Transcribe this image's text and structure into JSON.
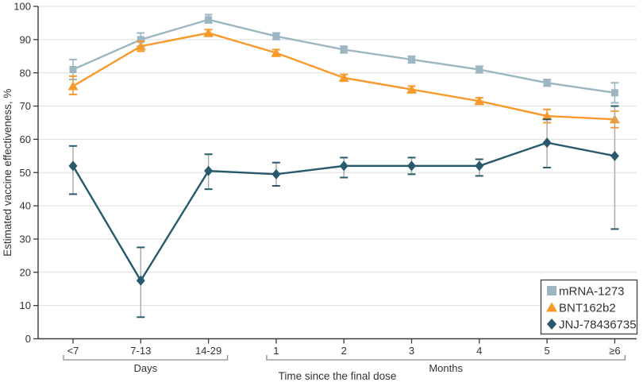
{
  "figure": {
    "ylabel": "Estimated vaccine effectiveness, %",
    "xlabel": "Time since the final dose"
  },
  "chart_data": {
    "type": "line",
    "title": "",
    "xlabel": "Time since the final dose",
    "ylabel": "Estimated vaccine effectiveness, %",
    "ylim": [
      0,
      100
    ],
    "ytick_step": 10,
    "yticks": [
      0,
      10,
      20,
      30,
      40,
      50,
      60,
      70,
      80,
      90,
      100
    ],
    "grid": true,
    "legend_position": "bottom-right",
    "categories": [
      "<7",
      "7-13",
      "14-29",
      "1",
      "2",
      "3",
      "4",
      "5",
      "≥6"
    ],
    "category_groups": [
      {
        "label": "Days",
        "first": 0,
        "last": 2
      },
      {
        "label": "Months",
        "first": 3,
        "last": 8
      }
    ],
    "colors": {
      "grid": "#DEDEDE",
      "axis": "#3A3A3A",
      "bracket": "#8C8C8C",
      "legend_border": "#4A4A4A"
    },
    "series": [
      {
        "name": "mRNA-1273",
        "marker": "square",
        "color": "#9CB6C2",
        "values": [
          81,
          90,
          96,
          91,
          87,
          84,
          81,
          77,
          74
        ],
        "ci_low": [
          78,
          88,
          95,
          90,
          86,
          83,
          80,
          76,
          71
        ],
        "ci_high": [
          84,
          92,
          97.5,
          92,
          88,
          85,
          82,
          78,
          77
        ]
      },
      {
        "name": "BNT162b2",
        "marker": "triangle",
        "color": "#F8992C",
        "values": [
          76,
          88,
          92,
          86,
          78.5,
          75,
          71.5,
          67,
          66
        ],
        "ci_low": [
          73.5,
          86.5,
          91,
          85,
          77.5,
          74,
          70.5,
          65,
          63.5
        ],
        "ci_high": [
          79,
          89.5,
          93,
          87,
          79.5,
          76,
          72.5,
          69,
          68.5
        ]
      },
      {
        "name": "JNJ-78436735",
        "marker": "diamond",
        "color": "#28596C",
        "error_line_color": "#ACACAC",
        "values": [
          52,
          17.5,
          50.5,
          49.5,
          52,
          52,
          52,
          59,
          55
        ],
        "ci_low": [
          43.5,
          6.5,
          45,
          46,
          48.5,
          49.5,
          49,
          51.5,
          33
        ],
        "ci_high": [
          58,
          27.5,
          55.5,
          53,
          54.5,
          54.5,
          54,
          66,
          70
        ]
      }
    ]
  }
}
